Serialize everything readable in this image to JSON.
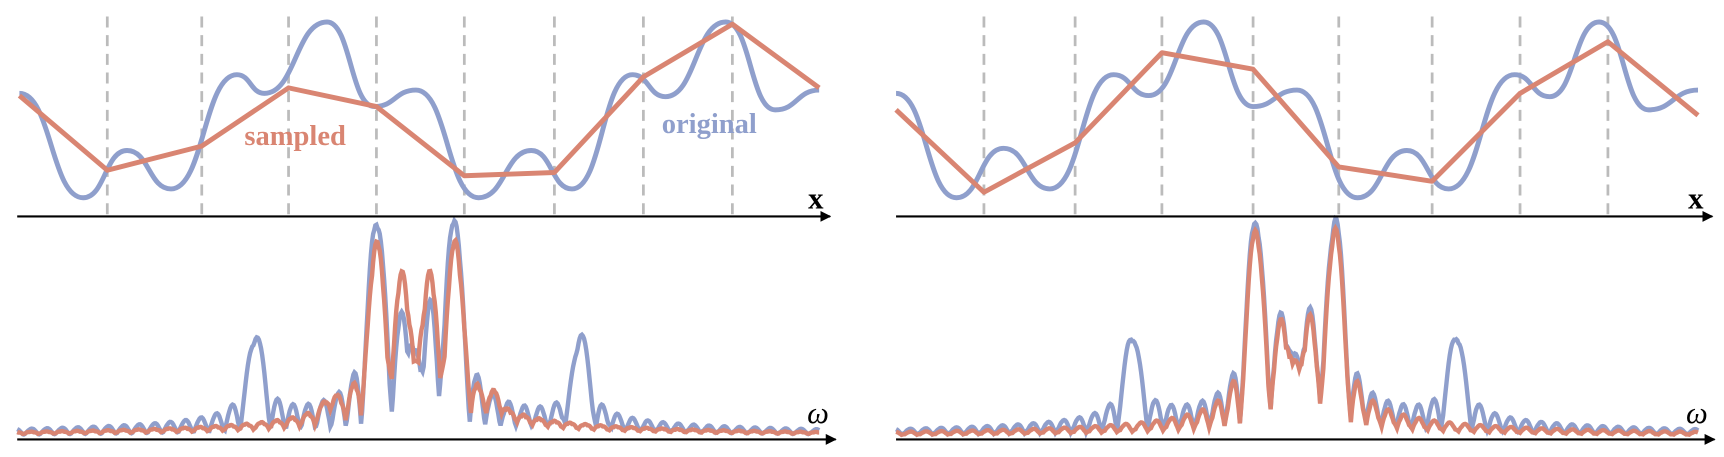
{
  "labels": {
    "sampled": "sampled",
    "original": "original"
  },
  "panels": [
    {
      "x_label": "x",
      "freq_label": "ω"
    },
    {
      "x_label": "x",
      "freq_label": "ω"
    }
  ]
}
